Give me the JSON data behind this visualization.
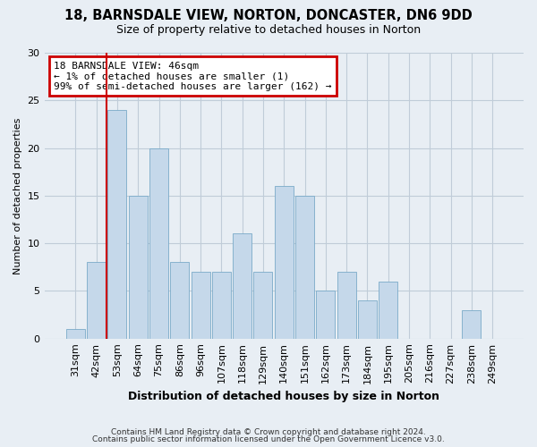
{
  "title_line1": "18, BARNSDALE VIEW, NORTON, DONCASTER, DN6 9DD",
  "title_line2": "Size of property relative to detached houses in Norton",
  "xlabel": "Distribution of detached houses by size in Norton",
  "ylabel": "Number of detached properties",
  "bar_color": "#c5d8ea",
  "bar_edge_color": "#7aaac8",
  "categories": [
    "31sqm",
    "42sqm",
    "53sqm",
    "64sqm",
    "75sqm",
    "86sqm",
    "96sqm",
    "107sqm",
    "118sqm",
    "129sqm",
    "140sqm",
    "151sqm",
    "162sqm",
    "173sqm",
    "184sqm",
    "195sqm",
    "205sqm",
    "216sqm",
    "227sqm",
    "238sqm",
    "249sqm"
  ],
  "values": [
    1,
    8,
    24,
    15,
    20,
    8,
    7,
    7,
    11,
    7,
    16,
    15,
    5,
    7,
    4,
    6,
    0,
    0,
    0,
    3,
    0
  ],
  "ylim": [
    0,
    30
  ],
  "yticks": [
    0,
    5,
    10,
    15,
    20,
    25,
    30
  ],
  "annotation_title": "18 BARNSDALE VIEW: 46sqm",
  "annotation_line1": "← 1% of detached houses are smaller (1)",
  "annotation_line2": "99% of semi-detached houses are larger (162) →",
  "vline_x_index": 1.5,
  "vline_color": "#cc0000",
  "annotation_box_edge_color": "#cc0000",
  "footer_line1": "Contains HM Land Registry data © Crown copyright and database right 2024.",
  "footer_line2": "Contains public sector information licensed under the Open Government Licence v3.0.",
  "background_color": "#e8eef4",
  "plot_background_color": "#e8eef4",
  "grid_color": "#c0ccd8"
}
